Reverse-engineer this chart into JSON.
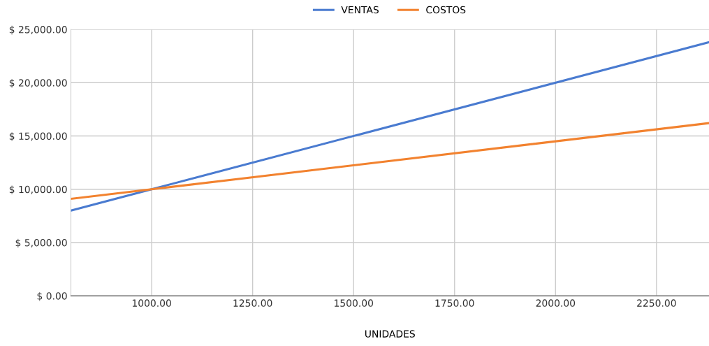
{
  "chart_data": {
    "type": "line",
    "xlabel": "UNIDADES",
    "x": [
      800,
      1000,
      2380
    ],
    "series": [
      {
        "name": "VENTAS",
        "color": "#4a7bd0",
        "values": [
          8000,
          10000,
          23800
        ]
      },
      {
        "name": "COSTOS",
        "color": "#f2822f",
        "values": [
          9100,
          10000,
          16210
        ]
      }
    ],
    "xlim": [
      800,
      2380
    ],
    "xticks": [
      {
        "value": 1000,
        "label": "1000.00"
      },
      {
        "value": 1250,
        "label": "1250.00"
      },
      {
        "value": 1500,
        "label": "1500.00"
      },
      {
        "value": 1750,
        "label": "1750.00"
      },
      {
        "value": 2000,
        "label": "2000.00"
      },
      {
        "value": 2250,
        "label": "2250.00"
      }
    ],
    "ylim": [
      0,
      25000
    ],
    "yticks": [
      {
        "value": 0,
        "label": "$ 0.00"
      },
      {
        "value": 5000,
        "label": "$ 5,000.00"
      },
      {
        "value": 10000,
        "label": "$ 10,000.00"
      },
      {
        "value": 15000,
        "label": "$ 15,000.00"
      },
      {
        "value": 20000,
        "label": "$ 20,000.00"
      },
      {
        "value": 25000,
        "label": "$ 25,000.00"
      }
    ],
    "grid": true,
    "legend": "top",
    "marker": "none",
    "line_style": "solid"
  }
}
